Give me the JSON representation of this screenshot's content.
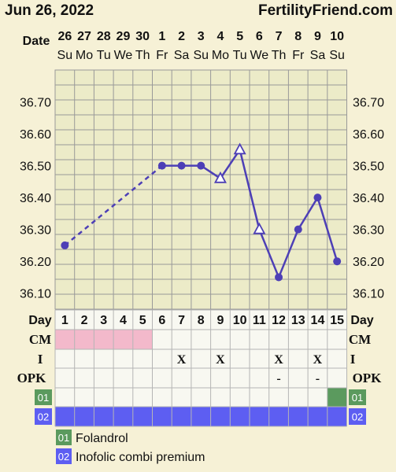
{
  "header": {
    "date": "Jun 26, 2022",
    "brand": "FertilityFriend.com"
  },
  "labels": {
    "date_row": "Date",
    "day_row": "Day",
    "cm_row": "CM",
    "i_row": "I",
    "opk_row": "OPK"
  },
  "dates": [
    {
      "num": "26",
      "dow": "Su"
    },
    {
      "num": "27",
      "dow": "Mo"
    },
    {
      "num": "28",
      "dow": "Tu"
    },
    {
      "num": "29",
      "dow": "We"
    },
    {
      "num": "30",
      "dow": "Th"
    },
    {
      "num": "1",
      "dow": "Fr"
    },
    {
      "num": "2",
      "dow": "Sa"
    },
    {
      "num": "3",
      "dow": "Su"
    },
    {
      "num": "4",
      "dow": "Mo"
    },
    {
      "num": "5",
      "dow": "Tu"
    },
    {
      "num": "6",
      "dow": "We"
    },
    {
      "num": "7",
      "dow": "Th"
    },
    {
      "num": "8",
      "dow": "Fr"
    },
    {
      "num": "9",
      "dow": "Sa"
    },
    {
      "num": "10",
      "dow": "Su"
    }
  ],
  "days": [
    "1",
    "2",
    "3",
    "4",
    "5",
    "6",
    "7",
    "8",
    "9",
    "10",
    "11",
    "12",
    "13",
    "14",
    "15"
  ],
  "cm_row": [
    "p",
    "p",
    "p",
    "p",
    "p",
    "",
    "",
    "",
    "",
    "",
    "",
    "",
    "",
    "",
    ""
  ],
  "i_row": [
    "",
    "",
    "",
    "",
    "",
    "",
    "X",
    "",
    "X",
    "",
    "",
    "X",
    "",
    "X",
    ""
  ],
  "opk_row": [
    "",
    "",
    "",
    "",
    "",
    "",
    "",
    "",
    "",
    "",
    "",
    "-",
    "",
    "-",
    ""
  ],
  "meds": [
    {
      "code": "01",
      "name": "Folandrol",
      "color": "#5b9a5e",
      "days": [
        15
      ]
    },
    {
      "code": "02",
      "name": "Inofolic combi premium",
      "color": "#5d5ef2",
      "days": [
        1,
        2,
        3,
        4,
        5,
        6,
        7,
        8,
        9,
        10,
        11,
        12,
        13,
        14,
        15
      ]
    }
  ],
  "colors": {
    "line": "#4d3fb6",
    "grid_bg": "#ecebc8",
    "grid_line": "#999999",
    "cm_pink": "#f3b9cb",
    "table_bg": "#f8f8f1"
  },
  "chart_data": {
    "type": "line",
    "ylim": [
      36.05,
      36.8
    ],
    "yticks": [
      "36.70",
      "36.60",
      "36.50",
      "36.40",
      "36.30",
      "36.20",
      "36.10"
    ],
    "series": [
      {
        "x": [
          1,
          6,
          7,
          8,
          9,
          10,
          11,
          12,
          13,
          14,
          15
        ],
        "values": [
          36.25,
          36.5,
          36.5,
          36.5,
          36.46,
          36.55,
          36.3,
          36.15,
          36.3,
          36.4,
          36.2
        ],
        "markers": [
          "circle",
          "circle",
          "circle",
          "circle",
          "triangle",
          "triangle",
          "triangle",
          "circle",
          "circle",
          "circle",
          "circle"
        ],
        "dashed_segments": [
          [
            1,
            6
          ]
        ]
      }
    ]
  }
}
